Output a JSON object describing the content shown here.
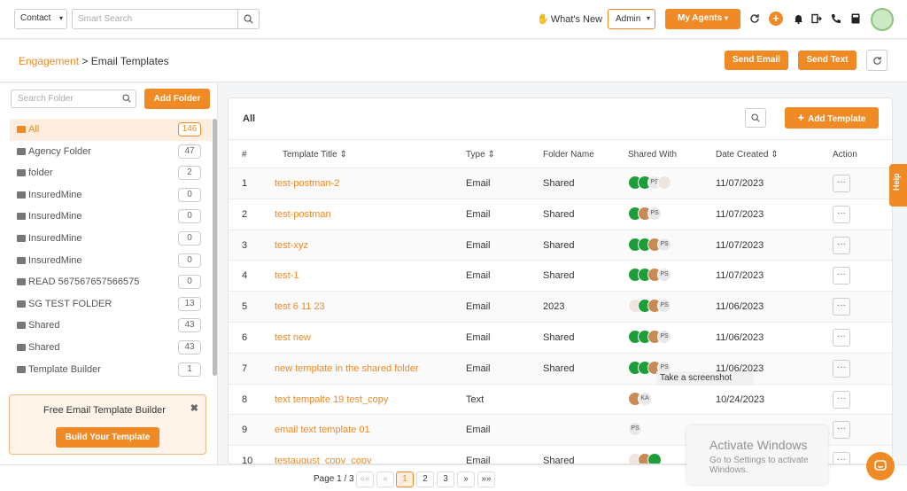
{
  "topbar": {
    "contact_select": "Contact",
    "search_placeholder": "Smart Search",
    "whats_new": "What's New",
    "admin": "Admin",
    "my_agents": "My Agents"
  },
  "breadcrumb": {
    "section": "Engagement",
    "separator": ">",
    "page": "Email Templates"
  },
  "actions": {
    "send_email": "Send Email",
    "send_text": "Send Text"
  },
  "sidebar": {
    "search_placeholder": "Search Folder",
    "add_folder": "Add Folder",
    "folders": [
      {
        "name": "All",
        "count": "146"
      },
      {
        "name": "Agency Folder",
        "count": "47"
      },
      {
        "name": "folder",
        "count": "2"
      },
      {
        "name": "InsuredMine",
        "count": "0"
      },
      {
        "name": "InsuredMine",
        "count": "0"
      },
      {
        "name": "InsuredMine",
        "count": "0"
      },
      {
        "name": "InsuredMine",
        "count": "0"
      },
      {
        "name": "READ 567567657566575",
        "count": "0"
      },
      {
        "name": "SG TEST FOLDER",
        "count": "13"
      },
      {
        "name": "Shared",
        "count": "43"
      },
      {
        "name": "Shared",
        "count": "43"
      },
      {
        "name": "Template Builder",
        "count": "1"
      }
    ],
    "promo": {
      "title": "Free Email Template Builder",
      "button": "Build Your Template"
    }
  },
  "main": {
    "title": "All",
    "add_template": "Add Template",
    "columns": {
      "num": "#",
      "title": "Template Title",
      "type": "Type",
      "folder": "Folder Name",
      "shared": "Shared With",
      "date": "Date Created",
      "action": "Action"
    },
    "rows": [
      {
        "num": "1",
        "title": "test-postman-2",
        "type": "Email",
        "folder": "Shared",
        "date": "11/07/2023",
        "avatars": [
          "g",
          "g",
          "PS",
          "w"
        ]
      },
      {
        "num": "2",
        "title": "test-postman",
        "type": "Email",
        "folder": "Shared",
        "date": "11/07/2023",
        "avatars": [
          "g",
          "f",
          "PS"
        ]
      },
      {
        "num": "3",
        "title": "test-xyz",
        "type": "Email",
        "folder": "Shared",
        "date": "11/07/2023",
        "avatars": [
          "g",
          "g",
          "f",
          "PS"
        ]
      },
      {
        "num": "4",
        "title": "test-1",
        "type": "Email",
        "folder": "Shared",
        "date": "11/07/2023",
        "avatars": [
          "g",
          "g",
          "f",
          "PS"
        ]
      },
      {
        "num": "5",
        "title": "test 6 11 23",
        "type": "Email",
        "folder": "2023",
        "date": "11/06/2023",
        "avatars": [
          "w",
          "g",
          "f",
          "PS"
        ]
      },
      {
        "num": "6",
        "title": "test new",
        "type": "Email",
        "folder": "Shared",
        "date": "11/06/2023",
        "avatars": [
          "g",
          "g",
          "f",
          "PS"
        ]
      },
      {
        "num": "7",
        "title": "new template in the shared folder",
        "type": "Email",
        "folder": "Shared",
        "date": "11/06/2023",
        "avatars": [
          "g",
          "g",
          "f",
          "PS"
        ]
      },
      {
        "num": "8",
        "title": "text tempalte 19 test_copy",
        "type": "Text",
        "folder": "",
        "date": "10/24/2023",
        "avatars": [
          "f",
          "KA"
        ]
      },
      {
        "num": "9",
        "title": "email text template 01",
        "type": "Email",
        "folder": "",
        "date": "",
        "avatars": [
          "PS"
        ]
      },
      {
        "num": "10",
        "title": "testaugust_copy_copy",
        "type": "Email",
        "folder": "Shared",
        "date": "",
        "avatars": [
          "w",
          "f",
          "g"
        ]
      }
    ],
    "action_label": "···"
  },
  "tooltip": "Take a screenshot",
  "help": "Help",
  "pagination": {
    "label": "Page 1 / 3",
    "first": "««",
    "prev": "«",
    "pages": [
      "1",
      "2",
      "3"
    ],
    "next": "»",
    "last": "»»"
  },
  "windows_notice": {
    "title": "Activate Windows",
    "subtitle": "Go to Settings to activate Windows."
  },
  "colors": {
    "accent": "#f08a24"
  }
}
